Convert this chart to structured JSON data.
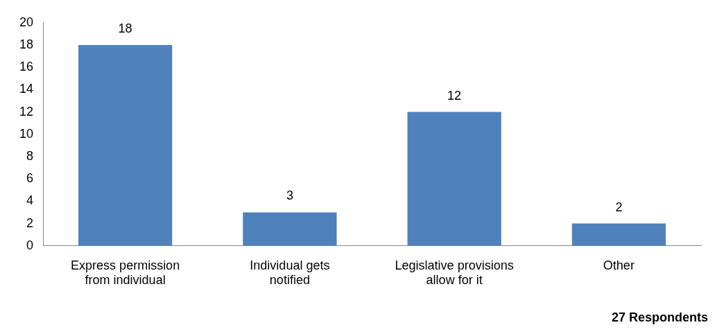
{
  "chart_data": {
    "type": "bar",
    "categories": [
      "Express permission from individual",
      "Individual gets notified",
      "Legislative provisions allow for it",
      "Other"
    ],
    "values": [
      18,
      3,
      12,
      2
    ],
    "color": "#4f81bd",
    "ylim": [
      0,
      20
    ],
    "yticks": [
      0,
      2,
      4,
      6,
      8,
      10,
      12,
      14,
      16,
      18,
      20
    ],
    "grid": false,
    "data_labels": true,
    "annotations": [
      "27 Respondents"
    ]
  }
}
